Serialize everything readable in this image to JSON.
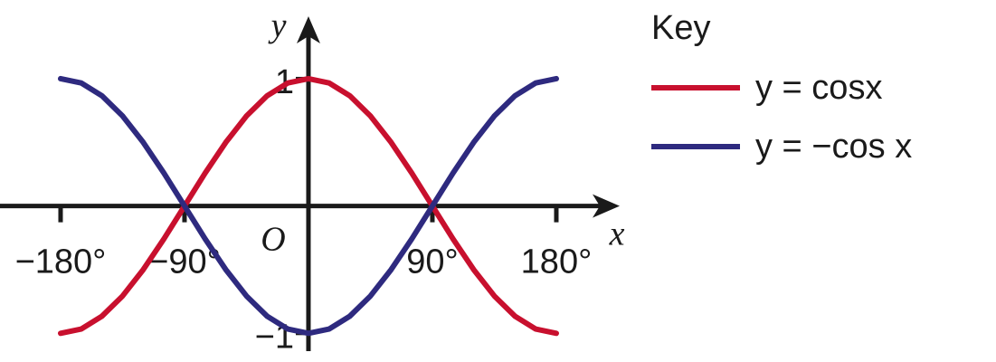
{
  "chart_data": {
    "type": "line",
    "legend_title": "Key",
    "x_label": "x",
    "y_label": "y",
    "origin_label": "O",
    "x": [
      -180,
      -165,
      -150,
      -135,
      -120,
      -105,
      -90,
      -75,
      -60,
      -45,
      -30,
      -15,
      0,
      15,
      30,
      45,
      60,
      75,
      90,
      105,
      120,
      135,
      150,
      165,
      180
    ],
    "series": [
      {
        "name": "y = cosx",
        "color": "#c8102e",
        "values": [
          -1,
          -0.966,
          -0.866,
          -0.707,
          -0.5,
          -0.259,
          0,
          0.259,
          0.5,
          0.707,
          0.866,
          0.966,
          1,
          0.966,
          0.866,
          0.707,
          0.5,
          0.259,
          0,
          -0.259,
          -0.5,
          -0.707,
          -0.866,
          -0.966,
          -1
        ]
      },
      {
        "name": "y = −cos x",
        "color": "#2e2a7f",
        "values": [
          1,
          0.966,
          0.866,
          0.707,
          0.5,
          0.259,
          0,
          -0.259,
          -0.5,
          -0.707,
          -0.866,
          -0.966,
          -1,
          -0.966,
          -0.866,
          -0.707,
          -0.5,
          -0.259,
          0,
          0.259,
          0.5,
          0.707,
          0.866,
          0.966,
          1
        ]
      }
    ],
    "xlim": [
      -224,
      226
    ],
    "ylim": [
      -1.14,
      1.49
    ],
    "xticks": [
      {
        "value": -180,
        "label": "−180°"
      },
      {
        "value": -90,
        "label": "−90°"
      },
      {
        "value": 90,
        "label": "90°"
      },
      {
        "value": 180,
        "label": "180°"
      }
    ],
    "yticks": [
      {
        "value": 1,
        "label": "1"
      },
      {
        "value": -1,
        "label": "−1"
      }
    ]
  }
}
